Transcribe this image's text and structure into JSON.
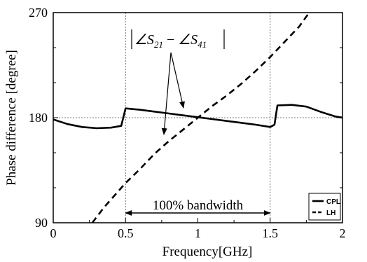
{
  "chart_data": {
    "type": "line",
    "xlabel": "Frequency[GHz]",
    "ylabel": "Phase difference [degree]",
    "xlim": [
      0,
      2
    ],
    "ylim": [
      90,
      270
    ],
    "xticks": [
      0,
      0.5,
      1,
      1.5,
      2
    ],
    "xtick_labels": [
      "0",
      "0.5",
      "1",
      "1.5",
      "2"
    ],
    "yticks": [
      90,
      180,
      270
    ],
    "ytick_labels": [
      "90",
      "180",
      "270"
    ],
    "reference_lines": {
      "horizontal": [
        180
      ],
      "vertical": [
        0.5,
        1.5
      ],
      "style": "dotted"
    },
    "legend_position": "bottom-right",
    "series": [
      {
        "name": "CPL",
        "style": "solid",
        "points": [
          [
            0.0,
            178.5
          ],
          [
            0.1,
            174.5
          ],
          [
            0.2,
            172
          ],
          [
            0.3,
            171
          ],
          [
            0.4,
            171.5
          ],
          [
            0.47,
            173
          ],
          [
            0.5,
            188
          ],
          [
            0.6,
            186.8
          ],
          [
            0.7,
            185.2
          ],
          [
            0.8,
            183.6
          ],
          [
            0.9,
            182
          ],
          [
            1.0,
            180.4
          ],
          [
            1.1,
            178.8
          ],
          [
            1.2,
            177.2
          ],
          [
            1.3,
            175.6
          ],
          [
            1.4,
            174
          ],
          [
            1.5,
            172
          ],
          [
            1.53,
            174
          ],
          [
            1.55,
            190.5
          ],
          [
            1.65,
            191
          ],
          [
            1.75,
            189.5
          ],
          [
            1.85,
            185
          ],
          [
            1.95,
            181
          ],
          [
            2.0,
            180
          ]
        ]
      },
      {
        "name": "LH",
        "style": "dashed",
        "points": [
          [
            0.27,
            90
          ],
          [
            0.35,
            103
          ],
          [
            0.45,
            117
          ],
          [
            0.5,
            124
          ],
          [
            0.6,
            136
          ],
          [
            0.7,
            149
          ],
          [
            0.8,
            160
          ],
          [
            0.9,
            170
          ],
          [
            1.0,
            180
          ],
          [
            1.1,
            190
          ],
          [
            1.2,
            199
          ],
          [
            1.3,
            209
          ],
          [
            1.4,
            220
          ],
          [
            1.5,
            232
          ],
          [
            1.6,
            245
          ],
          [
            1.7,
            258
          ],
          [
            1.77,
            270
          ]
        ]
      }
    ],
    "annotations": {
      "formula": {
        "base1": "∠S",
        "sub1": "21",
        "minus": " − ",
        "base2": "∠S",
        "sub2": "41"
      },
      "bandwidth_label": "100% bandwidth",
      "bandwidth_range": [
        0.5,
        1.5
      ]
    }
  }
}
